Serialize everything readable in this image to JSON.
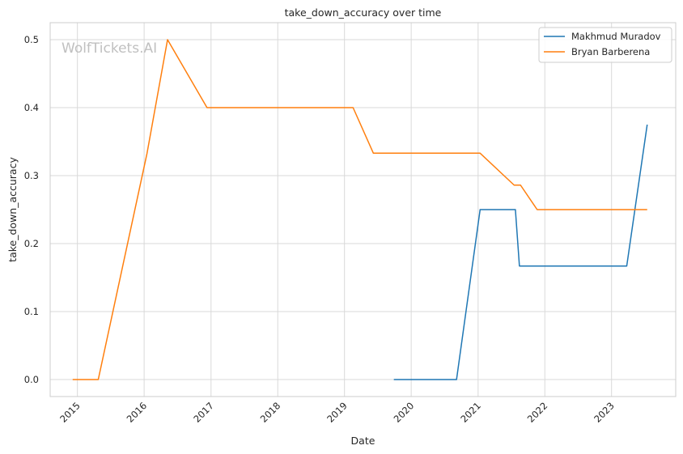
{
  "chart_data": {
    "type": "line",
    "title": "take_down_accuracy over time",
    "xlabel": "Date",
    "ylabel": "take_down_accuracy",
    "watermark": "WolfTickets.AI",
    "x_ticks": [
      "2015",
      "2016",
      "2017",
      "2018",
      "2019",
      "2020",
      "2021",
      "2022",
      "2023"
    ],
    "y_ticks": [
      "0.0",
      "0.1",
      "0.2",
      "0.3",
      "0.4",
      "0.5"
    ],
    "xlim": [
      "2014-08-05",
      "2023-12-18"
    ],
    "ylim": [
      -0.025,
      0.525
    ],
    "grid": true,
    "legend_position": "top-right",
    "series": [
      {
        "name": "Makhmud Muradov",
        "color": "#1f77b4",
        "points": [
          {
            "x": "2019-09-28",
            "y": 0.0
          },
          {
            "x": "2020-09-05",
            "y": 0.0
          },
          {
            "x": "2021-01-12",
            "y": 0.25
          },
          {
            "x": "2021-07-24",
            "y": 0.25
          },
          {
            "x": "2021-08-15",
            "y": 0.167
          },
          {
            "x": "2023-03-25",
            "y": 0.167
          },
          {
            "x": "2023-07-15",
            "y": 0.375
          }
        ]
      },
      {
        "name": "Bryan Barberena",
        "color": "#ff7f0e",
        "points": [
          {
            "x": "2014-12-06",
            "y": 0.0
          },
          {
            "x": "2015-04-25",
            "y": 0.0
          },
          {
            "x": "2016-01-17",
            "y": 0.333
          },
          {
            "x": "2016-05-08",
            "y": 0.5
          },
          {
            "x": "2016-12-10",
            "y": 0.4
          },
          {
            "x": "2019-02-17",
            "y": 0.4
          },
          {
            "x": "2019-06-08",
            "y": 0.333
          },
          {
            "x": "2021-01-12",
            "y": 0.333
          },
          {
            "x": "2021-07-17",
            "y": 0.286
          },
          {
            "x": "2021-08-21",
            "y": 0.286
          },
          {
            "x": "2021-11-20",
            "y": 0.25
          },
          {
            "x": "2023-07-15",
            "y": 0.25
          }
        ]
      }
    ]
  }
}
